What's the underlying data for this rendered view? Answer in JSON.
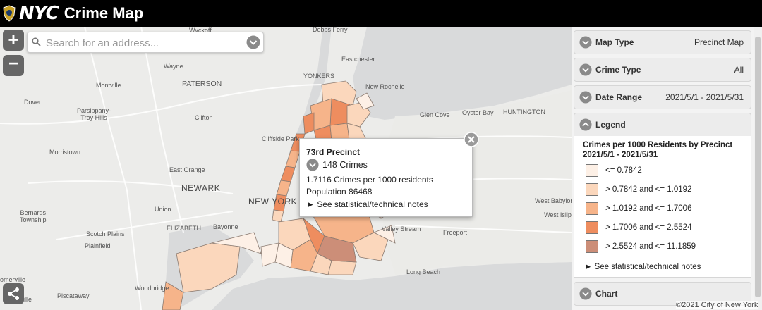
{
  "header": {
    "logo": "NYC",
    "title": "Crime Map"
  },
  "search": {
    "placeholder": "Search for an address..."
  },
  "zoom": {
    "in": "+",
    "out": "−"
  },
  "map_labels": [
    {
      "name": "label-wyckoff",
      "text": "Wyckoff"
    },
    {
      "name": "label-dobbs-ferry",
      "text": "Dobbs Ferry"
    },
    {
      "name": "label-eastchester",
      "text": "Eastchester"
    },
    {
      "name": "label-wayne",
      "text": "Wayne"
    },
    {
      "name": "label-yonkers",
      "text": "YONKERS"
    },
    {
      "name": "label-montville",
      "text": "Montville"
    },
    {
      "name": "label-paterson",
      "text": "PATERSON"
    },
    {
      "name": "label-new-rochelle",
      "text": "New Rochelle"
    },
    {
      "name": "label-dover",
      "text": "Dover"
    },
    {
      "name": "label-parsippany",
      "text": "Parsippany-\nTroy Hills"
    },
    {
      "name": "label-clifton",
      "text": "Clifton"
    },
    {
      "name": "label-glen-cove",
      "text": "Glen Cove"
    },
    {
      "name": "label-oyster-bay",
      "text": "Oyster Bay"
    },
    {
      "name": "label-huntington",
      "text": "HUNTINGTON"
    },
    {
      "name": "label-cliffside-park",
      "text": "Cliffside Park"
    },
    {
      "name": "label-morristown",
      "text": "Morristown"
    },
    {
      "name": "label-east-orange",
      "text": "East Orange"
    },
    {
      "name": "label-newark",
      "text": "NEWARK"
    },
    {
      "name": "label-new-york",
      "text": "NEW YORK"
    },
    {
      "name": "label-west-babylon",
      "text": "West Babylon"
    },
    {
      "name": "label-bernards",
      "text": "Bernards\nTownship"
    },
    {
      "name": "label-union",
      "text": "Union"
    },
    {
      "name": "label-west-islip",
      "text": "West Islip"
    },
    {
      "name": "label-elizabeth",
      "text": "ELIZABETH"
    },
    {
      "name": "label-bayonne",
      "text": "Bayonne"
    },
    {
      "name": "label-valley-stream",
      "text": "Valley Stream"
    },
    {
      "name": "label-freeport",
      "text": "Freeport"
    },
    {
      "name": "label-scotch-plains",
      "text": "Scotch Plains"
    },
    {
      "name": "label-plainfield",
      "text": "Plainfield"
    },
    {
      "name": "label-long-beach",
      "text": "Long Beach"
    },
    {
      "name": "label-somerville",
      "text": "omerville"
    },
    {
      "name": "label-piscataway",
      "text": "Piscataway"
    },
    {
      "name": "label-woodbridge",
      "text": "Woodbridge"
    },
    {
      "name": "label-ville",
      "text": "ille"
    }
  ],
  "popup": {
    "title": "73rd Precinct",
    "crimes": "148 Crimes",
    "rate": "1.7116 Crimes per 1000 residents",
    "population": "Population 86468",
    "notes": "► See statistical/technical notes"
  },
  "panel": {
    "map_type": {
      "label": "Map Type",
      "value": "Precinct Map"
    },
    "crime_type": {
      "label": "Crime Type",
      "value": "All"
    },
    "date_range": {
      "label": "Date Range",
      "value": "2021/5/1 - 2021/5/31"
    },
    "legend": {
      "label": "Legend",
      "title_line1": "Crimes per 1000 Residents by Precinct",
      "title_line2": "2021/5/1 - 2021/5/31",
      "items": [
        {
          "label": "<= 0.7842",
          "color": "#fdf0e6"
        },
        {
          "label": "> 0.7842 and <= 1.0192",
          "color": "#fbd7bc"
        },
        {
          "label": "> 1.0192 and <= 1.7006",
          "color": "#f6b48a"
        },
        {
          "label": "> 1.7006 and <= 2.5524",
          "color": "#ee8d5f"
        },
        {
          "label": "> 2.5524 and <= 11.1859",
          "color": "#cc8e78"
        }
      ],
      "notes": "► See statistical/technical notes"
    },
    "chart": {
      "label": "Chart"
    }
  },
  "copyright": "©2021 City of New York",
  "colors": {
    "header_bg": "#000000",
    "button_grey": "#666666",
    "chevron_grey": "#8a8a8a"
  }
}
